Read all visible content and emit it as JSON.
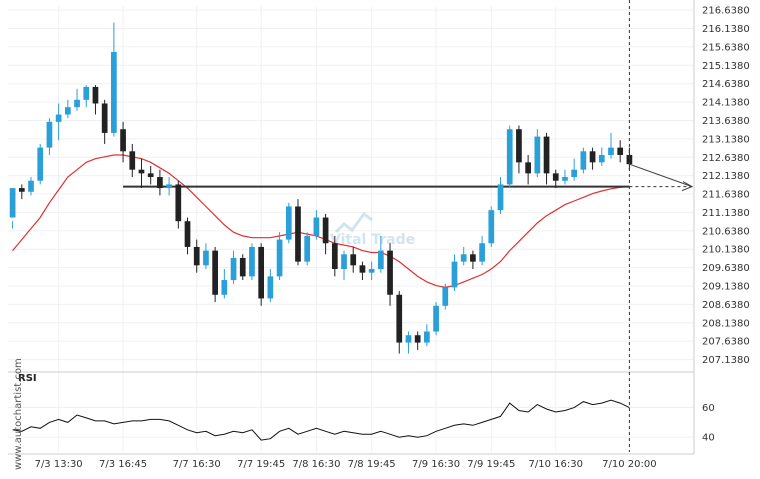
{
  "chart_data": [
    {
      "type": "candlestick",
      "title": "",
      "ylim": [
        206.8,
        216.75
      ],
      "y_ticks": [
        "216.6380",
        "216.1380",
        "215.6380",
        "215.1380",
        "214.6380",
        "214.1380",
        "213.6380",
        "213.1380",
        "212.6380",
        "212.1380",
        "211.6380",
        "211.1380",
        "210.6380",
        "210.1380",
        "209.6380",
        "209.1380",
        "208.6380",
        "208.1380",
        "207.6380",
        "207.1380"
      ],
      "x_tick_labels": [
        "7/3 13:30",
        "7/3 16:45",
        "7/7 16:30",
        "7/7 19:45",
        "7/8 16:30",
        "7/8 19:45",
        "7/9 16:30",
        "7/9 19:45",
        "7/10 16:30",
        "7/10 20:00"
      ],
      "support_level": 211.84,
      "up_color": "#2a9fd8",
      "down_color": "#222222",
      "ma_color": "#e03030",
      "level_color": "#333333",
      "series": {
        "candles": [
          [
            211.0,
            211.8,
            210.9,
            210.7
          ],
          [
            211.8,
            211.7,
            211.9,
            211.5
          ],
          [
            211.7,
            212.0,
            212.1,
            211.6
          ],
          [
            212.0,
            212.9,
            213.0,
            211.9
          ],
          [
            212.9,
            213.6,
            213.7,
            212.7
          ],
          [
            213.6,
            213.8,
            214.1,
            213.1
          ],
          [
            213.8,
            214.0,
            214.2,
            213.7
          ],
          [
            214.0,
            214.2,
            214.5,
            213.9
          ],
          [
            214.2,
            214.55,
            214.6,
            214.0
          ],
          [
            214.55,
            214.1,
            214.6,
            213.8
          ],
          [
            214.1,
            213.3,
            214.2,
            213.0
          ],
          [
            213.3,
            215.5,
            216.3,
            213.2
          ],
          [
            213.4,
            212.8,
            213.6,
            212.5
          ],
          [
            212.8,
            212.3,
            213.0,
            212.1
          ],
          [
            212.3,
            212.2,
            212.6,
            211.8
          ],
          [
            212.2,
            212.1,
            212.4,
            211.9
          ],
          [
            212.1,
            211.8,
            212.3,
            211.6
          ],
          [
            211.8,
            211.9,
            212.1,
            211.6
          ],
          [
            211.9,
            210.9,
            212.0,
            210.7
          ],
          [
            210.9,
            210.2,
            211.0,
            210.0
          ],
          [
            210.2,
            209.7,
            210.4,
            209.5
          ],
          [
            209.7,
            210.1,
            210.3,
            209.6
          ],
          [
            210.1,
            208.9,
            210.2,
            208.7
          ],
          [
            208.9,
            209.3,
            209.6,
            208.8
          ],
          [
            209.3,
            209.9,
            210.1,
            209.2
          ],
          [
            209.9,
            209.4,
            210.0,
            209.3
          ],
          [
            209.4,
            210.2,
            210.3,
            209.3
          ],
          [
            210.2,
            208.8,
            210.3,
            208.6
          ],
          [
            208.8,
            209.4,
            209.6,
            208.7
          ],
          [
            209.4,
            210.4,
            210.6,
            209.3
          ],
          [
            210.4,
            211.3,
            211.4,
            210.3
          ],
          [
            211.3,
            209.8,
            211.5,
            209.7
          ],
          [
            209.8,
            210.5,
            210.6,
            209.7
          ],
          [
            210.5,
            211.0,
            211.2,
            210.4
          ],
          [
            211.0,
            210.3,
            211.1,
            210.0
          ],
          [
            210.3,
            209.6,
            210.5,
            209.4
          ],
          [
            209.6,
            210.0,
            210.1,
            209.3
          ],
          [
            210.0,
            209.7,
            210.2,
            209.5
          ],
          [
            209.7,
            209.5,
            209.8,
            209.3
          ],
          [
            209.5,
            209.6,
            209.8,
            209.3
          ],
          [
            209.6,
            210.1,
            210.5,
            209.5
          ],
          [
            210.1,
            208.9,
            210.3,
            208.6
          ],
          [
            208.9,
            207.6,
            209.0,
            207.3
          ],
          [
            207.6,
            207.8,
            207.9,
            207.3
          ],
          [
            207.8,
            207.6,
            207.9,
            207.4
          ],
          [
            207.6,
            207.9,
            208.1,
            207.5
          ],
          [
            207.9,
            208.6,
            208.7,
            207.8
          ],
          [
            208.6,
            209.1,
            209.2,
            208.5
          ],
          [
            209.1,
            209.8,
            210.0,
            209.0
          ],
          [
            209.8,
            210.0,
            210.2,
            209.7
          ],
          [
            210.0,
            209.8,
            210.1,
            209.6
          ],
          [
            209.8,
            210.3,
            210.5,
            209.7
          ],
          [
            210.3,
            211.2,
            211.3,
            210.2
          ],
          [
            211.2,
            211.9,
            212.1,
            211.1
          ],
          [
            211.9,
            213.4,
            213.5,
            211.8
          ],
          [
            213.4,
            212.5,
            213.5,
            212.2
          ],
          [
            212.5,
            212.2,
            212.7,
            211.9
          ],
          [
            212.2,
            213.2,
            213.4,
            212.1
          ],
          [
            213.2,
            212.2,
            213.3,
            211.9
          ],
          [
            212.2,
            212.0,
            212.3,
            211.8
          ],
          [
            212.0,
            212.1,
            212.3,
            211.9
          ],
          [
            212.1,
            212.3,
            212.6,
            212.0
          ],
          [
            212.3,
            212.8,
            212.9,
            212.2
          ],
          [
            212.8,
            212.5,
            212.9,
            212.3
          ],
          [
            212.5,
            212.7,
            212.9,
            212.4
          ],
          [
            212.7,
            212.9,
            213.3,
            212.6
          ],
          [
            212.9,
            212.7,
            213.1,
            212.5
          ],
          [
            212.7,
            212.45,
            212.9,
            212.3
          ]
        ],
        "moving_average": [
          210.1,
          210.4,
          210.7,
          211.0,
          211.4,
          211.75,
          212.1,
          212.3,
          212.5,
          212.6,
          212.65,
          212.7,
          212.7,
          212.65,
          212.6,
          212.5,
          212.35,
          212.2,
          212.0,
          211.8,
          211.55,
          211.3,
          211.05,
          210.8,
          210.6,
          210.5,
          210.45,
          210.45,
          210.45,
          210.5,
          210.55,
          210.6,
          210.55,
          210.5,
          210.4,
          210.3,
          210.25,
          210.2,
          210.1,
          210.05,
          210.05,
          209.95,
          209.8,
          209.6,
          209.4,
          209.25,
          209.15,
          209.1,
          209.15,
          209.25,
          209.35,
          209.45,
          209.6,
          209.8,
          210.1,
          210.35,
          210.6,
          210.85,
          211.05,
          211.2,
          211.35,
          211.45,
          211.55,
          211.65,
          211.72,
          211.78,
          211.82,
          211.84
        ]
      }
    },
    {
      "type": "line",
      "title": "RSI",
      "ylim": [
        30,
        84
      ],
      "y_ticks": [
        60,
        40
      ],
      "series": [
        {
          "values": [
            45,
            44,
            47,
            46,
            50,
            52,
            50,
            55,
            53,
            51,
            51,
            49,
            50,
            51,
            51,
            52,
            52,
            51,
            48,
            45,
            43,
            44,
            41,
            42,
            44,
            43,
            45,
            38,
            39,
            44,
            46,
            42,
            44,
            46,
            44,
            42,
            44,
            43,
            42,
            42,
            44,
            42,
            40,
            41,
            40,
            41,
            44,
            46,
            48,
            49,
            48,
            50,
            52,
            54,
            63,
            58,
            57,
            62,
            59,
            57,
            58,
            60,
            64,
            62,
            63,
            65,
            63,
            60
          ]
        }
      ]
    }
  ],
  "watermark": {
    "site": "www.autochartist.com",
    "logo_text": "Vital Trade"
  },
  "colors": {
    "grid": "#f0f0f0",
    "axis": "#cccccc",
    "crosshair": "#333333"
  }
}
